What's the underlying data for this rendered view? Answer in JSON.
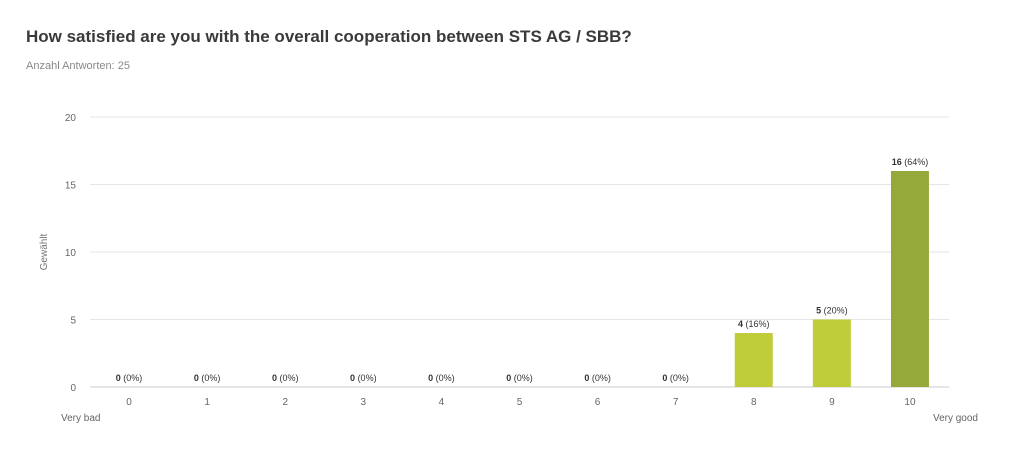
{
  "question": {
    "title": "How satisfied are you with the overall cooperation between STS AG / SBB?",
    "answers_text": "Anzahl Antworten: 25"
  },
  "chart_data": {
    "type": "bar",
    "title": "How satisfied are you with the overall cooperation between STS AG / SBB?",
    "subtitle": "Anzahl Antworten: 25",
    "xlabel": "",
    "ylabel": "Gewählt",
    "ylim": [
      0,
      20
    ],
    "yticks": [
      0,
      5,
      10,
      15,
      20
    ],
    "grid": true,
    "categories": [
      "0",
      "1",
      "2",
      "3",
      "4",
      "5",
      "6",
      "7",
      "8",
      "9",
      "10"
    ],
    "values": [
      0,
      0,
      0,
      0,
      0,
      0,
      0,
      0,
      4,
      5,
      16
    ],
    "percent_labels": [
      "(0%)",
      "(0%)",
      "(0%)",
      "(0%)",
      "(0%)",
      "(0%)",
      "(0%)",
      "(0%)",
      "(16%)",
      "(20%)",
      "(64%)"
    ],
    "bar_colors": [
      "#bfcd3a",
      "#bfcd3a",
      "#bfcd3a",
      "#bfcd3a",
      "#bfcd3a",
      "#bfcd3a",
      "#bfcd3a",
      "#bfcd3a",
      "#bfcd3a",
      "#bfcd3a",
      "#95a93a"
    ],
    "scale_low_label": "Very bad",
    "scale_high_label": "Very good"
  },
  "colors": {
    "bar_default": "#bfcd3a",
    "bar_highlight": "#95a93a",
    "grid": "#e6e6e6",
    "axis": "#cccccc"
  }
}
